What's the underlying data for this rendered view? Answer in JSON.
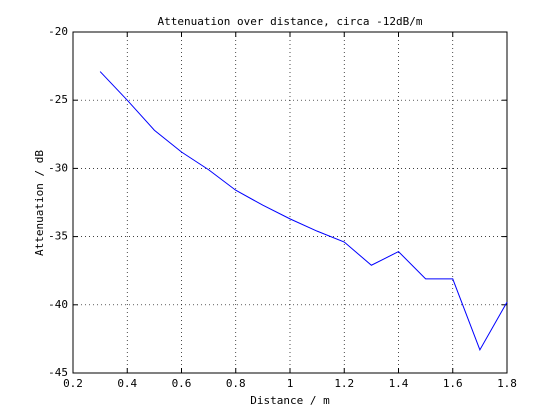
{
  "chart_data": {
    "type": "line",
    "title": "Attenuation over distance, circa -12dB/m",
    "x_label": "Distance / m",
    "y_label": "Attenuation / dB",
    "x": [
      0.3,
      0.4,
      0.5,
      0.6,
      0.7,
      0.8,
      0.9,
      1.0,
      1.1,
      1.2,
      1.3,
      1.4,
      1.5,
      1.6,
      1.7,
      1.8
    ],
    "values": [
      -22.9,
      -25.0,
      -27.2,
      -28.8,
      -30.1,
      -31.6,
      -32.7,
      -33.7,
      -34.6,
      -35.4,
      -37.1,
      -36.1,
      -38.1,
      -38.1,
      -43.3,
      -39.8
    ],
    "color": "#0000ff",
    "xlim": [
      0.2,
      1.8
    ],
    "xticks": [
      0.2,
      0.4,
      0.6,
      0.8,
      1,
      1.2,
      1.4,
      1.6,
      1.8
    ],
    "ylim": [
      -45,
      -20
    ],
    "yticks": [
      -45,
      -40,
      -35,
      -30,
      -25,
      -20
    ],
    "grid": true
  }
}
